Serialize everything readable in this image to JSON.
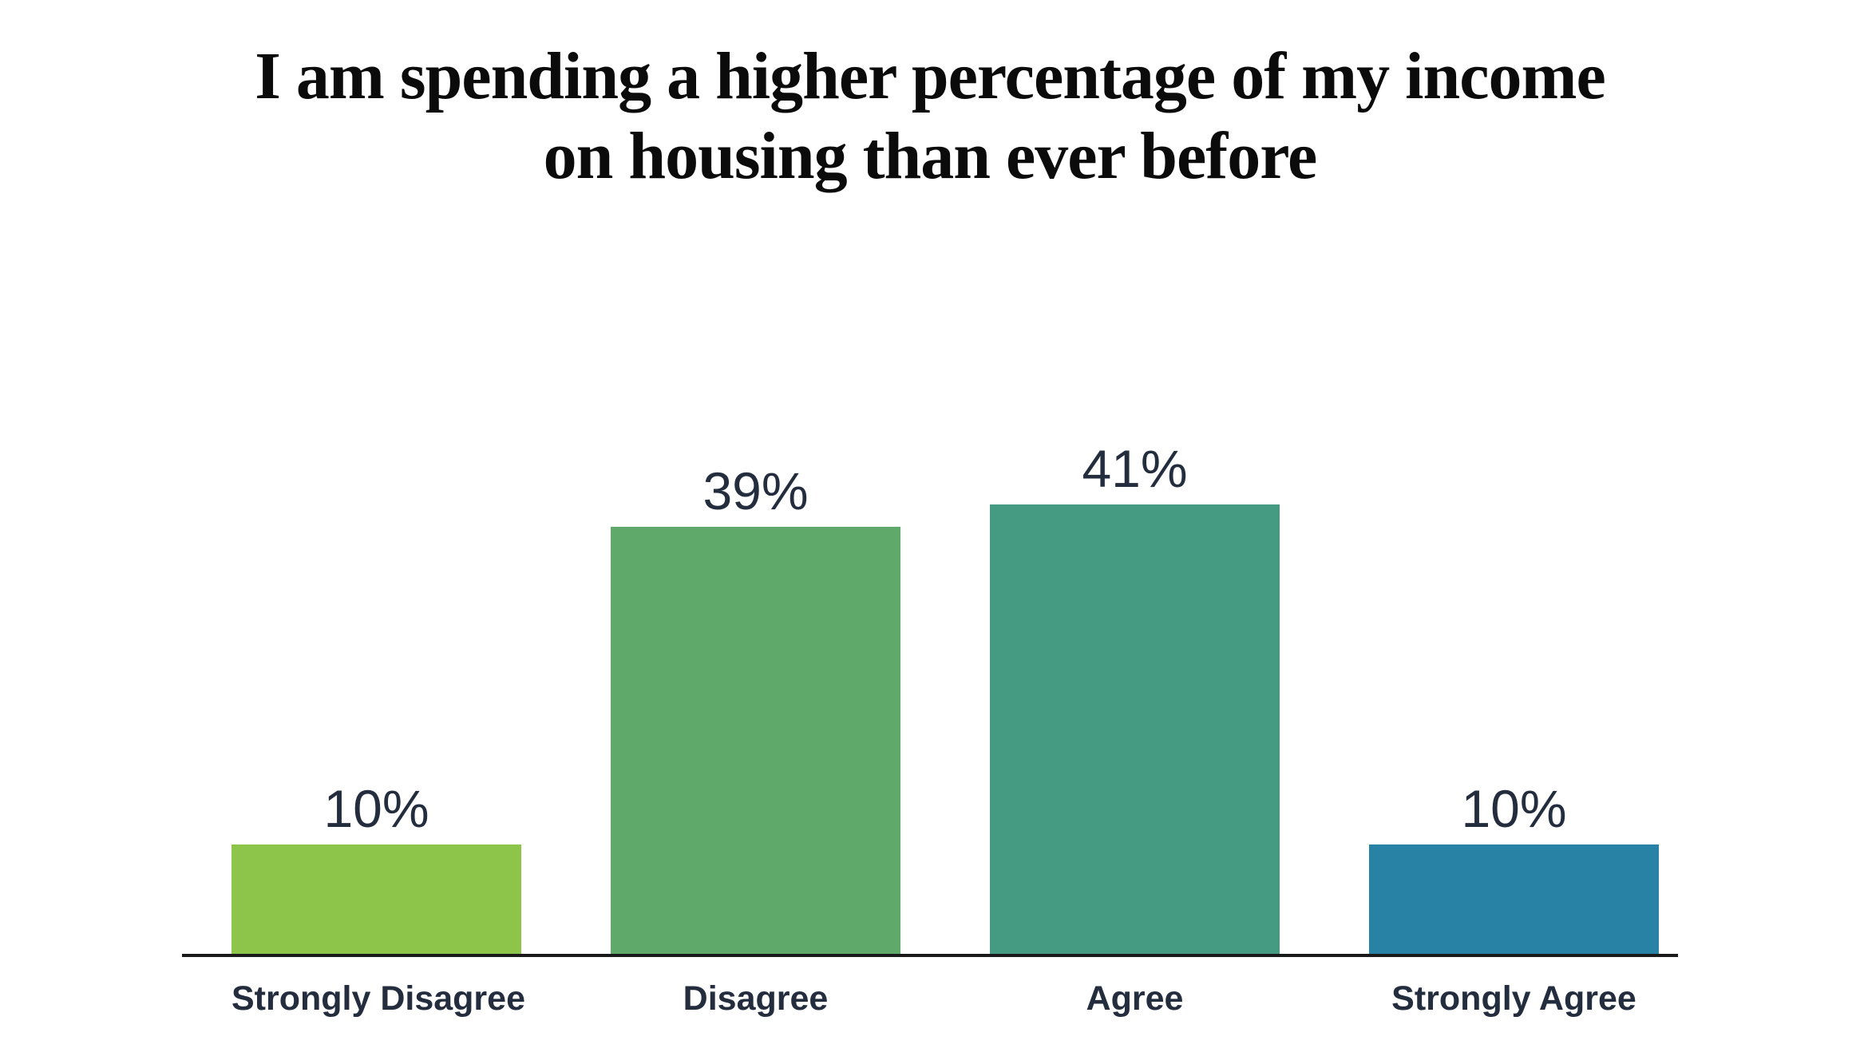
{
  "page": {
    "background": "#FFFFFF"
  },
  "title": {
    "line1": "I am spending a higher percentage of my income",
    "line2": "on housing than ever before",
    "color": "#0B0B0C"
  },
  "chart_data": {
    "type": "bar",
    "title": "I am spending a higher percentage of my income on housing than ever before",
    "categories": [
      "Strongly Disagree",
      "Disagree",
      "Agree",
      "Strongly Agree"
    ],
    "values": [
      10,
      39,
      41,
      10
    ],
    "value_labels": [
      "10%",
      "39%",
      "41%",
      "10%"
    ],
    "unit": "percent",
    "ylim": [
      0,
      45
    ],
    "grid": false,
    "legend": false,
    "orientation": "vertical",
    "bar_colors": [
      "#8DC54B",
      "#5FA96B",
      "#459A82",
      "#2782A5"
    ],
    "value_label_color": "#232D3E",
    "category_label_color": "#232D3E",
    "axis_line_color": "#1A1A1A",
    "background": "#FFFFFF"
  }
}
